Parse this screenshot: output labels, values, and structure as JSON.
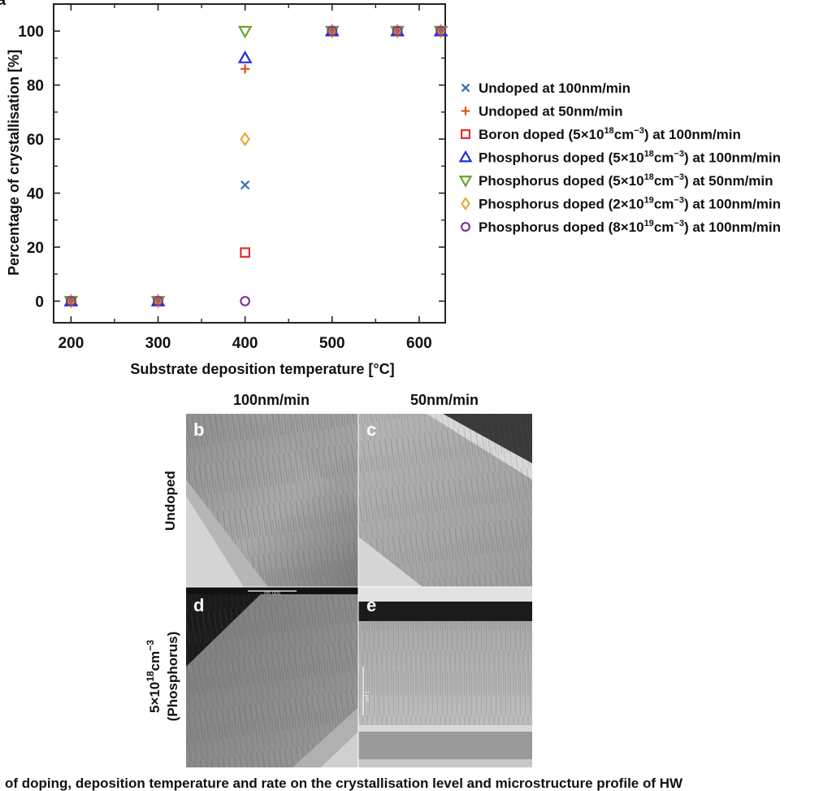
{
  "figure": {
    "panel_labels": [
      "a",
      "b",
      "c",
      "d",
      "e"
    ],
    "column_titles": [
      "100nm/min",
      "50nm/min"
    ],
    "row_titles": [
      "Undoped",
      "5×10",
      "18",
      "cm",
      "−3",
      "(Phosphorus)"
    ],
    "micrograph_scale_labels": [
      "500 nm",
      "1 μm"
    ],
    "caption": "of doping, deposition temperature and rate on the crystallisation level and microstructure profile of HW"
  },
  "chart_data": {
    "type": "scatter",
    "xlabel": "Substrate deposition temperature [°C]",
    "ylabel": "Percentage of crystallisation [%]",
    "xlim": [
      180,
      630
    ],
    "ylim": [
      -8,
      110
    ],
    "xticks": [
      200,
      300,
      400,
      500,
      600
    ],
    "yticks": [
      0,
      20,
      40,
      60,
      80,
      100
    ],
    "legend_position": "right",
    "series": [
      {
        "name": "Undoped at 100nm/min",
        "pre": "Undoped at 100nm/min",
        "sup": "",
        "post": "",
        "marker": "x",
        "color": "#3a6fb5",
        "x": [
          200,
          300,
          400,
          500,
          575,
          625
        ],
        "y": [
          0,
          0,
          43,
          100,
          100,
          100
        ]
      },
      {
        "name": "Undoped at 50nm/min",
        "pre": "Undoped at 50nm/min",
        "sup": "",
        "post": "",
        "marker": "plus",
        "color": "#d9541e",
        "x": [
          200,
          300,
          400,
          500,
          575,
          625
        ],
        "y": [
          0,
          0,
          86,
          100,
          100,
          100
        ]
      },
      {
        "name": "Boron doped (5×10¹⁸cm⁻³) at 100nm/min",
        "pre": "Boron doped (5×10",
        "sup": "18",
        "mid": "cm",
        "sup2": "−3",
        "post": ") at 100nm/min",
        "marker": "square",
        "color": "#e03030",
        "x": [
          200,
          300,
          400,
          500,
          575,
          625
        ],
        "y": [
          0,
          0,
          18,
          100,
          100,
          100
        ]
      },
      {
        "name": "Phosphorus doped (5×10¹⁸cm⁻³) at 100nm/min",
        "pre": "Phosphorus doped (5×10",
        "sup": "18",
        "mid": "cm",
        "sup2": "−3",
        "post": ") at 100nm/min",
        "marker": "triangle-up",
        "color": "#1f2fd6",
        "x": [
          200,
          300,
          400,
          500,
          575,
          625
        ],
        "y": [
          0,
          0,
          90,
          100,
          100,
          100
        ]
      },
      {
        "name": "Phosphorus doped (5×10¹⁸cm⁻³) at 50nm/min",
        "pre": "Phosphorus doped (5×10",
        "sup": "18",
        "mid": "cm",
        "sup2": "−3",
        "post": ") at 50nm/min",
        "marker": "triangle-down",
        "color": "#6aa332",
        "x": [
          200,
          300,
          400,
          500,
          575,
          625
        ],
        "y": [
          0,
          0,
          100,
          100,
          100,
          100
        ]
      },
      {
        "name": "Phosphorus doped (2×10¹⁹cm⁻³) at 100nm/min",
        "pre": "Phosphorus doped (2×10",
        "sup": "19",
        "mid": "cm",
        "sup2": "−3",
        "post": ") at 100nm/min",
        "marker": "diamond",
        "color": "#e8a93a",
        "x": [
          200,
          300,
          400,
          500,
          575,
          625
        ],
        "y": [
          0,
          0,
          60,
          100,
          100,
          100
        ]
      },
      {
        "name": "Phosphorus doped (8×10¹⁹cm⁻³) at 100nm/min",
        "pre": "Phosphorus doped (8×10",
        "sup": "19",
        "mid": "cm",
        "sup2": "−3",
        "post": ") at 100nm/min",
        "marker": "circle",
        "color": "#7a3a9a",
        "x": [
          200,
          300,
          400,
          500,
          575,
          625
        ],
        "y": [
          0,
          0,
          0,
          100,
          100,
          100
        ]
      }
    ]
  }
}
